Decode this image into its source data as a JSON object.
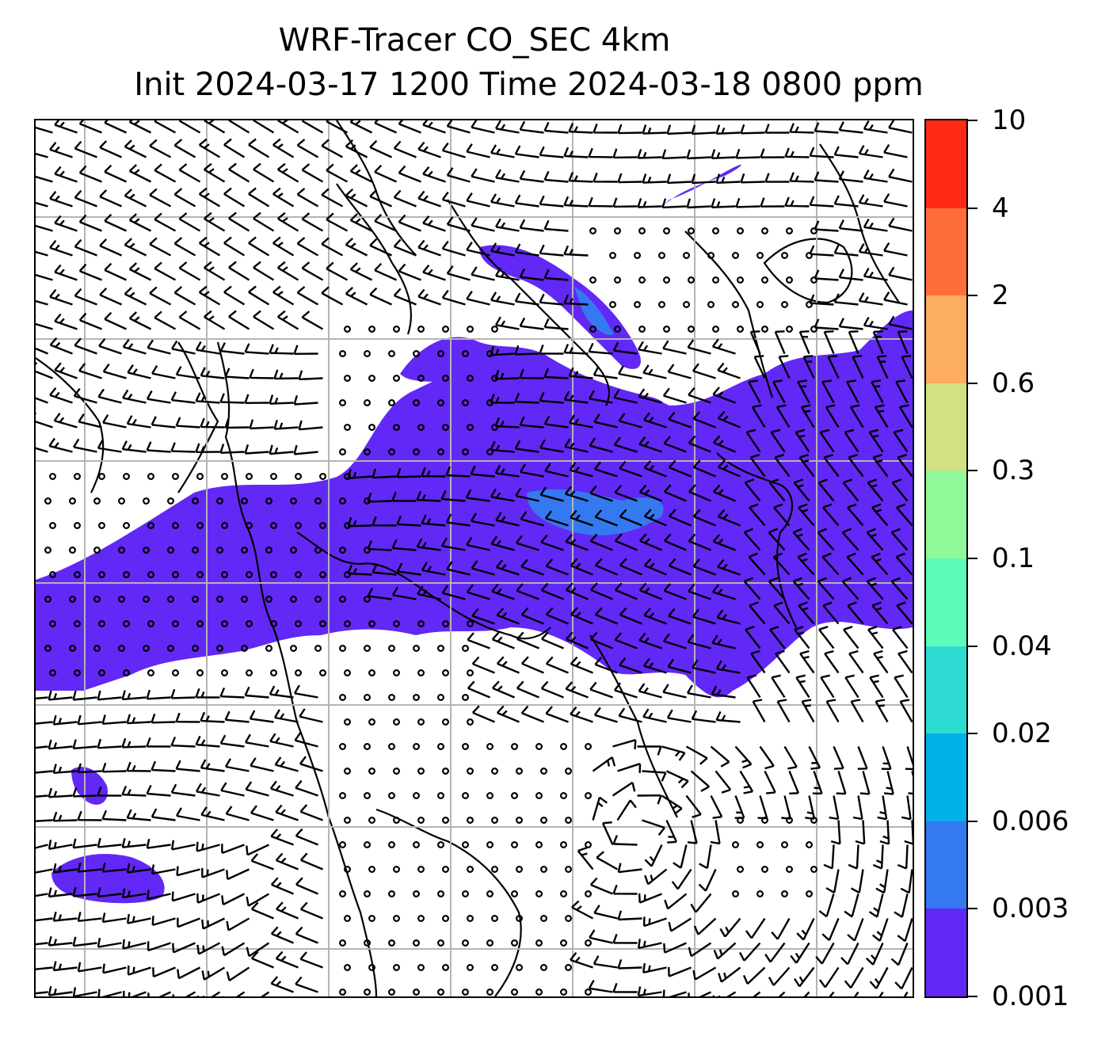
{
  "title": {
    "line1": "WRF-Tracer CO_SEC 4km",
    "line2": "Init 2024-03-17 1200 Time 2024-03-18 0800 ppm"
  },
  "colorbar": {
    "levels": [
      "10",
      "4",
      "2",
      "0.6",
      "0.3",
      "0.1",
      "0.04",
      "0.02",
      "0.006",
      "0.003",
      "0.001"
    ],
    "colors": [
      "#ff2a14",
      "#ff6e3a",
      "#fcad60",
      "#d2e181",
      "#91f89a",
      "#5cfcb8",
      "#2edbd2",
      "#00b2e8",
      "#3579f0",
      "#6228f5"
    ]
  },
  "map": {
    "tracer_fill_color": "#6228f5",
    "tracer_high_color": "#3579f0",
    "coastline_color": "#000000",
    "gridline_color": "#b4b4b4"
  }
}
